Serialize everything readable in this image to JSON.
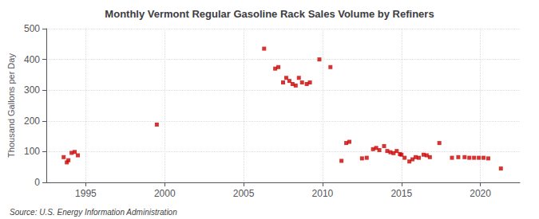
{
  "chart_data": {
    "type": "scatter",
    "title": "Monthly Vermont Regular Gasoline Rack Sales Volume by Refiners",
    "ylabel": "Thousand Gallons per Day",
    "annotations": [
      "Source: U.S. Energy Information Administration"
    ],
    "color": "#cc0000",
    "marker": "square",
    "grid": true,
    "xlim": [
      1992.5,
      2022.5
    ],
    "ylim": [
      0,
      500
    ],
    "xticks": [
      1995,
      2000,
      2005,
      2010,
      2015,
      2020
    ],
    "yticks": [
      0,
      100,
      200,
      300,
      400,
      500
    ],
    "x": [
      1993.6,
      1993.8,
      1993.9,
      1994.1,
      1994.3,
      1994.5,
      1999.5,
      2006.3,
      2007.0,
      2007.2,
      2007.5,
      2007.7,
      2007.9,
      2008.1,
      2008.3,
      2008.5,
      2008.7,
      2009.0,
      2009.2,
      2009.8,
      2010.5,
      2011.2,
      2011.5,
      2011.7,
      2012.5,
      2012.8,
      2013.2,
      2013.4,
      2013.6,
      2013.9,
      2014.1,
      2014.3,
      2014.5,
      2014.7,
      2014.9,
      2015.0,
      2015.2,
      2015.5,
      2015.7,
      2015.9,
      2016.1,
      2016.4,
      2016.6,
      2016.8,
      2017.4,
      2018.2,
      2018.6,
      2019.0,
      2019.3,
      2019.6,
      2019.9,
      2020.2,
      2020.5,
      2021.3
    ],
    "values": [
      82,
      65,
      72,
      96,
      99,
      88,
      188,
      435,
      370,
      375,
      325,
      340,
      330,
      320,
      315,
      340,
      325,
      320,
      325,
      400,
      375,
      70,
      128,
      132,
      78,
      80,
      108,
      112,
      105,
      118,
      102,
      98,
      95,
      102,
      92,
      90,
      80,
      68,
      75,
      82,
      80,
      90,
      88,
      82,
      128,
      80,
      82,
      82,
      80,
      80,
      80,
      80,
      78,
      45
    ]
  }
}
